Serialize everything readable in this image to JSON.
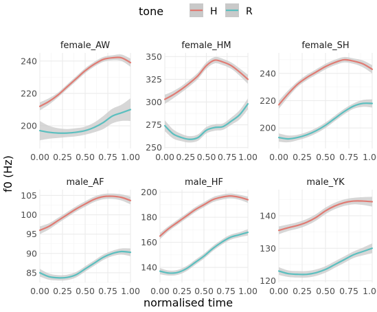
{
  "chart_data": {
    "type": "line",
    "xlabel": "normalised time",
    "ylabel": "f0 (Hz)",
    "legend": {
      "title": "tone",
      "position": "top",
      "entries": [
        {
          "name": "H",
          "color": "#E07B73"
        },
        {
          "name": "R",
          "color": "#5BBFBF"
        }
      ]
    },
    "band_color": "#c9c9c9",
    "x_ticks": [
      0.0,
      0.25,
      0.5,
      0.75,
      1.0
    ],
    "x_tick_labels": [
      "0.00",
      "0.25",
      "0.50",
      "0.75",
      "1.00"
    ],
    "xlim": [
      0,
      1
    ],
    "x": [
      0.0,
      0.1,
      0.2,
      0.3,
      0.4,
      0.5,
      0.6,
      0.7,
      0.8,
      0.9,
      1.0
    ],
    "panels": [
      {
        "title": "female_AW",
        "ylim": [
          186,
          245
        ],
        "y_ticks": [
          200,
          220,
          240
        ],
        "series": [
          {
            "name": "H",
            "values": [
              212,
              215,
              219,
              224,
              229,
              234,
              238,
              241,
              242,
              242,
              239
            ],
            "band": [
              2.5,
              2,
              1.5,
              1.5,
              1.5,
              1.5,
              1.5,
              1.5,
              1.5,
              2,
              2.5
            ]
          },
          {
            "name": "R",
            "values": [
              197,
              196,
              195.5,
              195.5,
              196,
              197,
              199,
              202,
              206,
              208,
              210
            ],
            "band": [
              6,
              4,
              3,
              2.5,
              2.5,
              2.5,
              3,
              4,
              4.5,
              5,
              7
            ]
          }
        ]
      },
      {
        "title": "female_HM",
        "ylim": [
          249,
          354
        ],
        "y_ticks": [
          250,
          275,
          300,
          325,
          350
        ],
        "series": [
          {
            "name": "H",
            "values": [
              303,
              308,
              314,
              321,
              329,
              340,
              346,
              344,
              340,
              333,
              325
            ],
            "band": [
              5,
              4,
              3.5,
              3.5,
              3.5,
              3.5,
              3.5,
              3.5,
              3.5,
              4,
              5
            ]
          },
          {
            "name": "R",
            "values": [
              274,
              265,
              261,
              259,
              261,
              269,
              272,
              273,
              279,
              286,
              298
            ],
            "band": [
              6,
              5,
              4,
              3.5,
              3.5,
              3.5,
              3.5,
              3.5,
              4,
              5,
              6
            ]
          }
        ]
      },
      {
        "title": "female_SH",
        "ylim": [
          185,
          255
        ],
        "y_ticks": [
          200,
          220,
          240
        ],
        "series": [
          {
            "name": "H",
            "values": [
              217,
              225,
              232,
              237,
              241,
              245,
              248,
              250,
              249,
              247,
              243
            ],
            "band": [
              3,
              2.5,
              2,
              2,
              2,
              2,
              2,
              2,
              2,
              2.5,
              3
            ]
          },
          {
            "name": "R",
            "values": [
              193,
              192,
              193,
              195,
              198,
              202,
              207,
              212,
              216,
              218,
              218
            ],
            "band": [
              3,
              2.5,
              2,
              2,
              2,
              2,
              2,
              2,
              2,
              2.5,
              3
            ]
          }
        ]
      },
      {
        "title": "male_AF",
        "ylim": [
          82.5,
          106.5
        ],
        "y_ticks": [
          85,
          90,
          95,
          100,
          105
        ],
        "series": [
          {
            "name": "H",
            "values": [
              96,
              97,
              98.5,
              100,
              101.5,
              102.8,
              104,
              104.7,
              104.8,
              104.5,
              103.7
            ],
            "band": [
              1,
              0.8,
              0.7,
              0.7,
              0.7,
              0.7,
              0.7,
              0.7,
              0.7,
              0.8,
              1
            ]
          },
          {
            "name": "R",
            "values": [
              85,
              84,
              83.7,
              83.8,
              84.5,
              86,
              87.5,
              89,
              90,
              90.5,
              90.3
            ],
            "band": [
              1,
              0.8,
              0.7,
              0.7,
              0.7,
              0.7,
              0.7,
              0.7,
              0.7,
              0.8,
              1
            ]
          }
        ]
      },
      {
        "title": "male_HF",
        "ylim": [
          128,
          202
        ],
        "y_ticks": [
          140,
          160,
          180,
          200
        ],
        "series": [
          {
            "name": "H",
            "values": [
              165,
              171,
              176,
              181,
              186,
              190,
              194,
              196,
              197,
              196,
              194
            ],
            "band": [
              2.5,
              2,
              2,
              2,
              2,
              2,
              2,
              2,
              2,
              2,
              2.5
            ]
          },
          {
            "name": "R",
            "values": [
              137,
              135.5,
              136,
              139,
              144,
              149,
              155,
              160,
              164,
              166,
              168
            ],
            "band": [
              2.5,
              2,
              2,
              2,
              2,
              2,
              2,
              2,
              2,
              2,
              2.5
            ]
          }
        ]
      },
      {
        "title": "male_YK",
        "ylim": [
          119.5,
          148
        ],
        "y_ticks": [
          120,
          130,
          140
        ],
        "series": [
          {
            "name": "H",
            "values": [
              135.5,
              136.3,
              137,
              138,
              139.5,
              141.5,
              143,
              144,
              144.5,
              144.5,
              144.3
            ],
            "band": [
              1.2,
              1,
              1,
              1,
              1,
              1,
              1,
              1,
              1,
              1.2,
              1.5
            ]
          },
          {
            "name": "R",
            "values": [
              123,
              122.2,
              122,
              122,
              122.5,
              123.5,
              125,
              126.5,
              128,
              129,
              130
            ],
            "band": [
              1.2,
              1,
              1,
              1,
              1,
              1,
              1,
              1,
              1,
              1.2,
              1.5
            ]
          }
        ]
      }
    ]
  }
}
